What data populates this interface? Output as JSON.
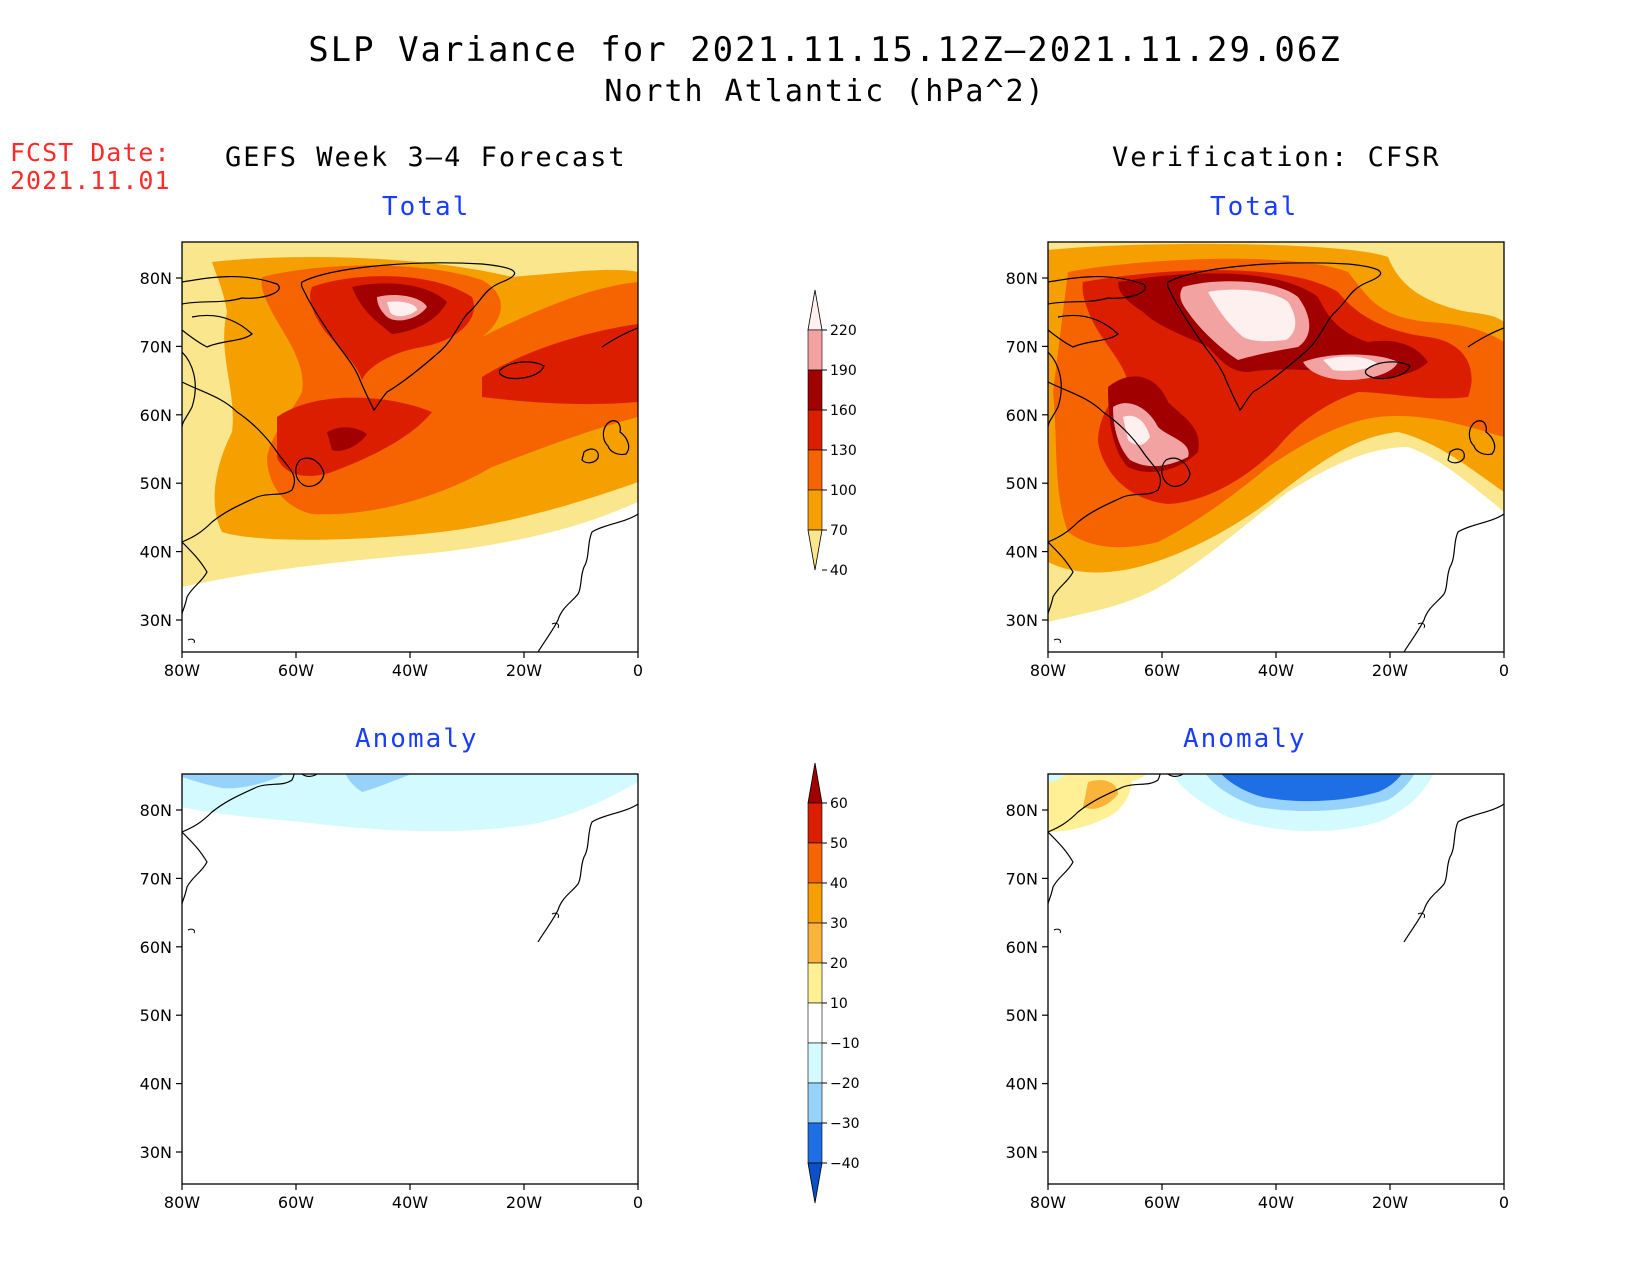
{
  "title": {
    "line1": "SLP Variance for 2021.11.15.12Z–2021.11.29.06Z",
    "line2": "North Atlantic (hPa^2)"
  },
  "fcst": {
    "label": "FCST Date:",
    "date": "2021.11.01"
  },
  "columns": {
    "left": "GEFS Week 3–4 Forecast",
    "right": "Verification: CFSR"
  },
  "panels": {
    "top_left": "Total",
    "top_right": "Total",
    "bottom_left": "Anomaly",
    "bottom_right": "Anomaly"
  },
  "axes": {
    "lat_labels": [
      "80N",
      "70N",
      "60N",
      "50N",
      "40N",
      "30N"
    ],
    "lon_labels": [
      "80W",
      "60W",
      "40W",
      "20W",
      "0"
    ]
  },
  "colorbar_total": {
    "levels": [
      "220",
      "190",
      "160",
      "130",
      "100",
      "70",
      "40"
    ],
    "colors": [
      "#fff0f0",
      "#f3a2a2",
      "#a00000",
      "#dc1e00",
      "#f56400",
      "#f5a000",
      "#fae68c"
    ]
  },
  "colorbar_anomaly": {
    "levels": [
      "60",
      "50",
      "40",
      "30",
      "20",
      "10",
      "−10",
      "−20",
      "−30",
      "−40"
    ],
    "colors": [
      "#a00000",
      "#dc1e00",
      "#f56400",
      "#f5a000",
      "#fab43c",
      "#fff096",
      "#ffffff",
      "#d2faff",
      "#96d2fa",
      "#1e6ee6",
      "#0a50c8"
    ]
  }
}
